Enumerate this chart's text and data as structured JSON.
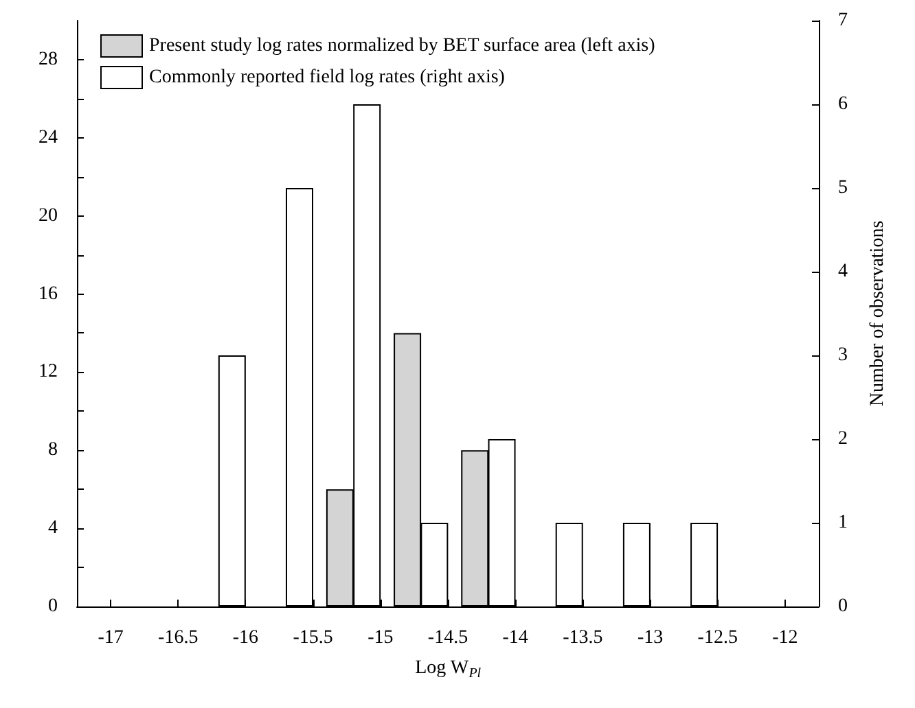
{
  "chart_data": {
    "type": "bar",
    "xlabel": "Log W$_{Pl}$",
    "y2label": "Number of observations",
    "xlim": [
      -17.25,
      -11.75
    ],
    "xticks": [
      -17,
      -16.5,
      -16,
      -15.5,
      -15,
      -14.5,
      -14,
      -13.5,
      -13,
      -12.5,
      -12
    ],
    "ylim": [
      0,
      30
    ],
    "yticks": [
      0,
      {
        "value": 2,
        "label": null
      },
      4,
      {
        "value": 6,
        "label": null
      },
      8,
      {
        "value": 10,
        "label": null
      },
      12,
      {
        "value": 14,
        "label": null
      },
      16,
      {
        "value": 18,
        "label": null
      },
      20,
      {
        "value": 22,
        "label": null
      },
      24,
      {
        "value": 26,
        "label": null
      },
      28
    ],
    "y2lim": [
      0,
      7
    ],
    "y2ticks": [
      0,
      1,
      2,
      3,
      4,
      5,
      6,
      7
    ],
    "legend": "top left",
    "grid": false,
    "series": [
      {
        "name": "Present study log rates normalized by BET surface area (left axis)",
        "color": "#d4d4d4",
        "x": [
          -15.3,
          -14.8,
          -14.3
        ],
        "values": [
          6,
          14,
          8
        ]
      },
      {
        "name": "Commonly reported field log rates (right axis)",
        "color": "#ffffff",
        "axis": "y2",
        "x": [
          -16.1,
          -15.6,
          -15.1,
          -14.6,
          -14.1,
          -13.6,
          -13.1,
          -12.6
        ],
        "values": [
          3,
          5,
          6,
          1,
          2,
          1,
          1,
          1
        ]
      }
    ]
  }
}
